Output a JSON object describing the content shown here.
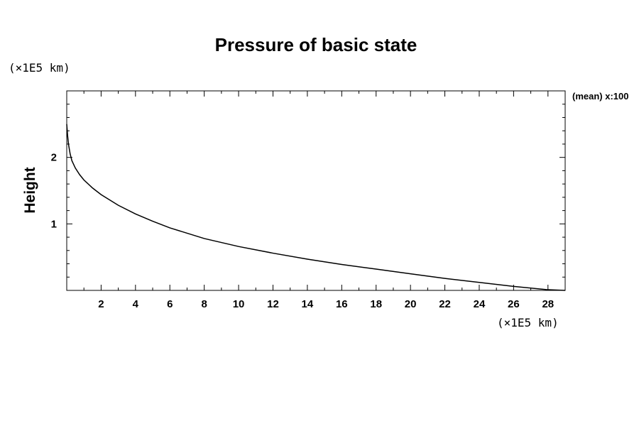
{
  "chart_data": {
    "type": "line",
    "title": "Pressure of basic state",
    "xlabel": "",
    "ylabel": "Height",
    "x_unit": "(×1E5 km)",
    "y_unit": "(×1E5 km)",
    "annotation": "(mean) x:100",
    "xlim": [
      0,
      29
    ],
    "ylim": [
      0,
      3
    ],
    "x_ticks": [
      2,
      4,
      6,
      8,
      10,
      12,
      14,
      16,
      18,
      20,
      22,
      24,
      26,
      28
    ],
    "y_ticks": [
      1,
      2
    ],
    "grid": false,
    "series": [
      {
        "x": [
          0.0,
          0.05,
          0.1,
          0.2,
          0.3,
          0.5,
          0.75,
          1.0,
          1.5,
          2.0,
          3.0,
          4.0,
          5.0,
          6.0,
          8.0,
          10.0,
          12.0,
          14.0,
          16.0,
          18.0,
          20.0,
          22.0,
          24.0,
          26.0,
          28.0,
          29.0
        ],
        "y": [
          2.5,
          2.33,
          2.2,
          2.05,
          1.95,
          1.84,
          1.74,
          1.66,
          1.54,
          1.44,
          1.28,
          1.15,
          1.04,
          0.94,
          0.78,
          0.66,
          0.56,
          0.47,
          0.39,
          0.32,
          0.25,
          0.18,
          0.12,
          0.06,
          0.01,
          0.0
        ]
      }
    ]
  }
}
